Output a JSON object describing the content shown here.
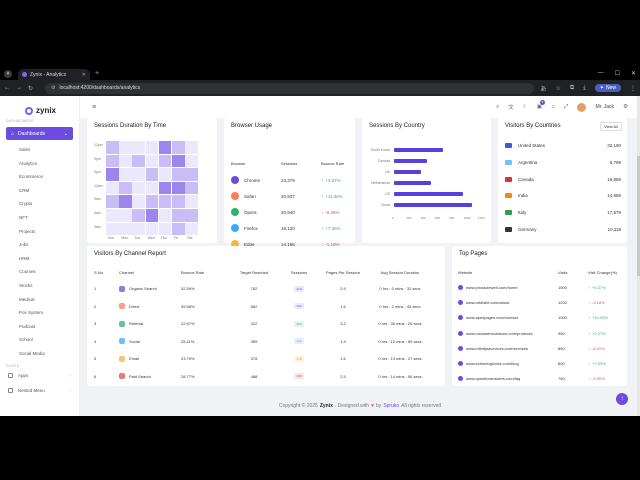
{
  "browser": {
    "tab_title": "Zynix - Analytics",
    "url": "localhost:4200/dashboards/analytics",
    "new_button": "New"
  },
  "brand": {
    "name": "zynix",
    "accent": "#6c4ce0"
  },
  "sidebar": {
    "category_main": "DASHBOARDS",
    "active_item": "Dashboards",
    "items": [
      "Sales",
      "Analytics",
      "Ecommerce",
      "CRM",
      "Crypto",
      "NFT",
      "Projects",
      "Jobs",
      "HRM",
      "Courses",
      "Stocks",
      "Medical",
      "Pos System",
      "Podcast",
      "School",
      "Social Media"
    ],
    "category_pages": "PAGES",
    "bottom_items": [
      "Apps",
      "Nested Menu"
    ]
  },
  "header": {
    "user_name": "Mr. Jack",
    "notification_count": "5"
  },
  "sessions_duration": {
    "title": "Sessions Duration By Time",
    "time_labels": [
      "12pm",
      "9pm",
      "3pm",
      "12am",
      "9am",
      "6am",
      "3am"
    ],
    "day_labels": [
      "Sun",
      "Mon",
      "Tue",
      "Wed",
      "Thu",
      "Fri",
      "Sat"
    ]
  },
  "browser_usage": {
    "title": "Browser Usage",
    "headers": {
      "browser": "Browser",
      "sessions": "Sessions",
      "bounce": "Bounce Rate"
    },
    "rows": [
      {
        "name": "Chrome",
        "sessions": "23,379",
        "bounce": "+3.37%",
        "trend": "up",
        "color": "#6c4ce0"
      },
      {
        "name": "Safari",
        "sessions": "20,937",
        "bounce": "+11.36%",
        "trend": "up",
        "color": "#ff7b5c"
      },
      {
        "name": "Opera",
        "sessions": "20,940",
        "bounce": "-9.45%",
        "trend": "down",
        "color": "#2fb36c"
      },
      {
        "name": "Firefox",
        "sessions": "18,120",
        "bounce": "+7.36%",
        "trend": "up",
        "color": "#3da7ff"
      },
      {
        "name": "Edge",
        "sessions": "14,166",
        "bounce": "-1.19%",
        "trend": "down",
        "color": "#f0b73a"
      }
    ]
  },
  "sessions_by_country": {
    "title": "Sessions By Country",
    "countries": [
      "South Korea",
      "Canada",
      "UK",
      "Netherlands",
      "US",
      "China"
    ],
    "x_ticks": [
      "0",
      "200",
      "400",
      "600",
      "800",
      "1000",
      "1200"
    ]
  },
  "visitors_by_countries": {
    "title": "Visitors By Countries",
    "view_all": "View All",
    "rows": [
      {
        "name": "United States",
        "value": "32,190",
        "color": "#3b5bdb"
      },
      {
        "name": "Argentina",
        "value": "8,798",
        "color": "#74c0fc"
      },
      {
        "name": "Canada",
        "value": "16,885",
        "color": "#e03131"
      },
      {
        "name": "India",
        "value": "14,885",
        "color": "#f08c00"
      },
      {
        "name": "Italy",
        "value": "17,578",
        "color": "#2f9e44"
      },
      {
        "name": "Germany",
        "value": "10,118",
        "color": "#333333"
      }
    ]
  },
  "channel_report": {
    "title": "Visitors By Channel Report",
    "headers": [
      "S.No",
      "Channel",
      "Bounce Rate",
      "Target Reached",
      "Sessions",
      "Pages Per Session",
      "Avg Session Duration"
    ],
    "rows": [
      {
        "no": "1",
        "channel": "Organic Search",
        "bounce": "32.59%",
        "target": "782",
        "sessions": "219",
        "pps": "2.9",
        "dur": "0 hrs : 0 mins : 32 secs",
        "color": "#6c4ce0",
        "pill": "#ece8fc",
        "pilltext": "#6c4ce0"
      },
      {
        "no": "2",
        "channel": "Direct",
        "bounce": "39.58%",
        "target": "882",
        "sessions": "192",
        "pps": "1.5",
        "dur": "0 hrs : 2 mins : 45 secs",
        "color": "#ff7b5c",
        "pill": "#ece8fc",
        "pilltext": "#6c4ce0"
      },
      {
        "no": "3",
        "channel": "Referral",
        "bounce": "22.67%",
        "target": "322",
        "sessions": "322",
        "pps": "3.2",
        "dur": "0 hrs : 36 mins : 26 secs",
        "color": "#2fb36c",
        "pill": "#e3f6ec",
        "pilltext": "#2fb36c"
      },
      {
        "no": "4",
        "channel": "Social",
        "bounce": "25.11%",
        "target": "389",
        "sessions": "142",
        "pps": "1.4",
        "dur": "0 hrs : 12 mins : 89 secs",
        "color": "#3da7ff",
        "pill": "#e3f0fc",
        "pilltext": "#3da7ff"
      },
      {
        "no": "5",
        "channel": "Email",
        "bounce": "23.79%",
        "target": "378",
        "sessions": "178",
        "pps": "1.6",
        "dur": "0 hrs : 14 mins : 27 secs",
        "color": "#f0b73a",
        "pill": "#fdf3dc",
        "pilltext": "#f0a000"
      },
      {
        "no": "6",
        "channel": "Paid Search",
        "bounce": "28.77%",
        "target": "488",
        "sessions": "298",
        "pps": "2.5",
        "dur": "0 hrs : 14 mins : 56 secs",
        "color": "#e54c4c",
        "pill": "#fce5e5",
        "pilltext": "#e54c4c"
      }
    ]
  },
  "top_pages": {
    "title": "Top Pages",
    "headers": [
      "Website",
      "Visits",
      "Visit Change(%)"
    ],
    "rows": [
      {
        "site": "www.pinnacleweb.com/home",
        "visits": "1500",
        "change": "+5.37%",
        "trend": "up"
      },
      {
        "site": "www.orbitsite.com/about",
        "visits": "1200",
        "change": "-3.18%",
        "trend": "down"
      },
      {
        "site": "www.apexpages.com/contact",
        "visits": "1000",
        "change": "+10.03%",
        "trend": "up"
      },
      {
        "site": "www.novawebsolutions.com/products",
        "visits": "950",
        "change": "+2.27%",
        "trend": "up"
      },
      {
        "site": "www.infinitysecrvices.com/services",
        "visits": "850",
        "change": "-8.41%",
        "trend": "down"
      },
      {
        "site": "www.echoblogworld.com/blog",
        "visits": "800",
        "change": "+7.53%",
        "trend": "up"
      },
      {
        "site": "www.questforanswers.com/faq",
        "visits": "750",
        "change": "-9.90%",
        "trend": "down"
      }
    ]
  },
  "footer": {
    "prefix": "Copyright © 2025",
    "brand": "Zynix",
    "mid": ". Designed with",
    "by": "by",
    "author": "Spruko",
    "suffix": "All rights reserved"
  },
  "chart_data": [
    {
      "type": "heatmap",
      "title": "Sessions Duration By Time",
      "x": [
        "Sun",
        "Mon",
        "Tue",
        "Wed",
        "Thu",
        "Fri",
        "Sat"
      ],
      "y": [
        "12pm",
        "9pm",
        "3pm",
        "12am",
        "9am",
        "6am",
        "3am"
      ],
      "values": [
        [
          2,
          1,
          1,
          1,
          3,
          2,
          1
        ],
        [
          2,
          1,
          2,
          1,
          2,
          3,
          1
        ],
        [
          3,
          1,
          1,
          2,
          1,
          2,
          2
        ],
        [
          1,
          2,
          1,
          1,
          3,
          3,
          2
        ],
        [
          2,
          3,
          1,
          2,
          2,
          2,
          1
        ],
        [
          1,
          1,
          2,
          3,
          1,
          2,
          2
        ],
        [
          1,
          1,
          1,
          1,
          1,
          2,
          1
        ]
      ]
    },
    {
      "type": "bar",
      "orientation": "horizontal",
      "title": "Sessions By Country",
      "categories": [
        "South Korea",
        "Canada",
        "UK",
        "Netherlands",
        "US",
        "China"
      ],
      "values": [
        680,
        460,
        380,
        520,
        960,
        1090
      ],
      "xlim": [
        0,
        1200
      ]
    }
  ]
}
